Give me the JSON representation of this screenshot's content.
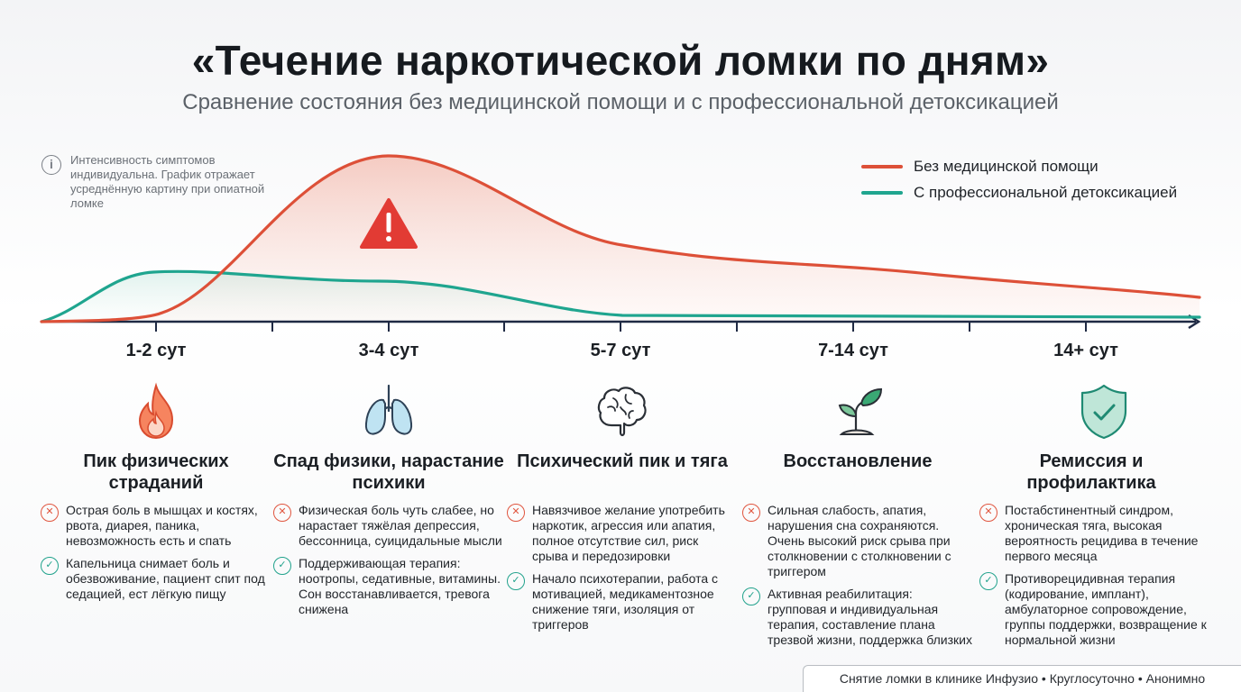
{
  "title": "«Течение наркотической ломки по дням»",
  "subtitle": "Сравнение состояния без медицинской помощи и с профессиональной детоксикацией",
  "note": "Интенсивность симптомов индивидуальна. График отражает усреднённую картину при опиатной ломке",
  "legend": {
    "without": "Без медицинской помощи",
    "with": "С профессиональной детоксикацией"
  },
  "colors": {
    "without": "#dd5038",
    "with": "#1fa58f"
  },
  "stages": [
    {
      "label": "1-2 сут",
      "icon": "flame-icon",
      "title": "Пик физических страданий",
      "bad": "Острая боль в мышцах и костях, рвота, диарея, паника, невозможность есть и спать",
      "good": "Капельница снимает боль и обезвоживание, пациент спит под седацией, ест лёгкую пищу"
    },
    {
      "label": "3-4 сут",
      "icon": "lungs-icon",
      "title": "Спад физики, нарастание психики",
      "bad": "Физическая боль чуть слабее, но нарастает тяжёлая депрессия, бессонница, суицидальные мысли",
      "good": "Поддерживающая терапия: ноотропы, седативные, витамины. Сон восстанавливается, тревога снижена"
    },
    {
      "label": "5-7 сут",
      "icon": "brain-icon",
      "title": "Психический пик и тяга",
      "bad": "Навязчивое желание употребить наркотик, агрессия или апатия, полное отсутствие сил, риск срыва и передозировки",
      "good": "Начало психотерапии, работа с мотивацией, медикаментозное снижение тяги, изоляция от триггеров"
    },
    {
      "label": "7-14 сут",
      "icon": "sprout-icon",
      "title": "Восстановление",
      "bad": "Сильная слабость, апатия, нарушения сна сохраняются. Очень высокий риск срыва при столкновении с столкновении с триггером",
      "good": "Активная реабилитация: групповая и индивидуальная терапия, составление плана трезвой жизни, поддержка близких"
    },
    {
      "label": "14+ сут",
      "icon": "shield-check-icon",
      "title": "Ремиссия и профилактика",
      "bad": "Постабстинентный синдром, хроническая тяга, высокая вероятность рецидива в течение первого месяца",
      "good": "Противорецидивная терапия (кодирование, имплант), амбулаторное сопровождение, группы поддержки, возвращение к нормальной жизни"
    }
  ],
  "chart_data": {
    "type": "area",
    "x": [
      "1-2 сут",
      "3-4 сут",
      "5-7 сут",
      "7-14 сут",
      "14+ сут"
    ],
    "series": [
      {
        "name": "Без медицинской помощи",
        "points": [
          [
            0,
            0
          ],
          [
            0.5,
            2
          ],
          [
            1,
            10
          ],
          [
            2,
            100
          ],
          [
            3,
            45
          ],
          [
            4,
            35
          ],
          [
            5,
            15
          ]
        ]
      },
      {
        "name": "С профессиональной детоксикацией",
        "points": [
          [
            0,
            0
          ],
          [
            0.5,
            30
          ],
          [
            1,
            30
          ],
          [
            2,
            25
          ],
          [
            3,
            3
          ],
          [
            4,
            3
          ],
          [
            5,
            3
          ]
        ]
      }
    ],
    "ylim": [
      0,
      100
    ],
    "annotation": "warning-icon"
  },
  "footer": "Снятие ломки в клинике Инфузио • Круглосуточно • Анонимно"
}
